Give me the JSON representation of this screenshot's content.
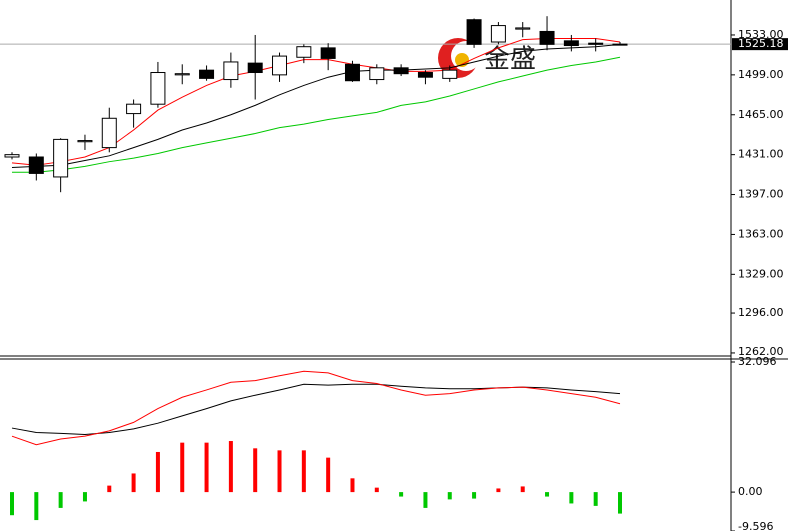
{
  "chart_data": [
    {
      "type": "candlestick",
      "open": [
        1429,
        1429,
        1412,
        1442,
        1437,
        1466,
        1474,
        1499,
        1503,
        1495,
        1509,
        1499,
        1514,
        1522,
        1508,
        1495,
        1505,
        1501,
        1496,
        1546,
        1527,
        1538,
        1536,
        1528,
        1526,
        1525
      ],
      "high": [
        1433,
        1432,
        1445,
        1448,
        1471,
        1478,
        1510,
        1508,
        1507,
        1518,
        1533,
        1518,
        1525,
        1526,
        1511,
        1508,
        1508,
        1503,
        1507,
        1547,
        1544,
        1544,
        1549,
        1533,
        1530,
        1527
      ],
      "low": [
        1427,
        1409,
        1399,
        1435,
        1433,
        1454,
        1471,
        1491,
        1494,
        1488,
        1478,
        1493,
        1509,
        1503,
        1493,
        1491,
        1498,
        1491,
        1493,
        1522,
        1525,
        1531,
        1520,
        1519,
        1519,
        1524
      ],
      "close": [
        1431,
        1415,
        1444,
        1443,
        1462,
        1474,
        1501,
        1500,
        1496,
        1510,
        1501,
        1515,
        1523,
        1513,
        1494,
        1505,
        1500,
        1497,
        1503,
        1525,
        1541,
        1539,
        1525,
        1524,
        1525,
        1525.18
      ],
      "up_color": "#ffffff",
      "down_color": "#000000",
      "lines": [
        {
          "color": "#ff0000",
          "values": [
            1424,
            1422,
            1425,
            1429,
            1437,
            1452,
            1469,
            1480,
            1490,
            1498,
            1502,
            1507,
            1512,
            1512,
            1508,
            1505,
            1502,
            1502,
            1503,
            1513,
            1522,
            1529,
            1530,
            1530,
            1530,
            1527
          ]
        },
        {
          "color": "#000000",
          "values": [
            1420,
            1421,
            1422,
            1426,
            1430,
            1437,
            1444,
            1452,
            1458,
            1465,
            1473,
            1482,
            1490,
            1497,
            1502,
            1503,
            1503,
            1504,
            1505,
            1510,
            1515,
            1519,
            1521,
            1522,
            1523,
            1525
          ]
        },
        {
          "color": "#00c800",
          "values": [
            1416,
            1416,
            1418,
            1421,
            1425,
            1428,
            1432,
            1437,
            1441,
            1445,
            1449,
            1454,
            1457,
            1461,
            1464,
            1467,
            1473,
            1476,
            1481,
            1487,
            1493,
            1498,
            1503,
            1507,
            1510,
            1514
          ]
        }
      ],
      "ylim": [
        1259.4,
        1562.8
      ],
      "yticks": [
        {
          "value": 1533,
          "label": "1533.00"
        },
        {
          "value": 1499,
          "label": "1499.00"
        },
        {
          "value": 1465,
          "label": "1465.00"
        },
        {
          "value": 1431,
          "label": "1431.00"
        },
        {
          "value": 1397,
          "label": "1397.00"
        },
        {
          "value": 1363,
          "label": "1363.00"
        },
        {
          "value": 1329,
          "label": "1329.00"
        },
        {
          "value": 1296,
          "label": "1296.00"
        },
        {
          "value": 1262,
          "label": "1262.00"
        }
      ],
      "last_price": {
        "value": 1525.18,
        "label": "1525.18"
      },
      "watermark": "金盛"
    },
    {
      "type": "macd",
      "histogram": [
        -5.7,
        -6.9,
        -3.9,
        -2.3,
        1.6,
        4.6,
        9.9,
        12.2,
        12.2,
        12.6,
        10.8,
        10.3,
        10.3,
        8.5,
        3.4,
        1.1,
        -1.1,
        -3.9,
        -1.8,
        -1.6,
        0.9,
        1.4,
        -1.1,
        -2.8,
        -3.4,
        -5.3
      ],
      "up_color": "#ff0000",
      "down_color": "#00c800",
      "lines": [
        {
          "color": "#000000",
          "values": [
            15.8,
            14.7,
            14.5,
            14.2,
            14.7,
            15.6,
            17,
            18.8,
            20.6,
            22.5,
            23.9,
            25.2,
            26.6,
            26.4,
            26.6,
            26.6,
            26.1,
            25.7,
            25.5,
            25.5,
            25.7,
            25.9,
            25.7,
            25.2,
            24.8,
            24.3
          ]
        },
        {
          "color": "#ff0000",
          "values": [
            13.8,
            11.7,
            13.1,
            13.8,
            15.1,
            17.2,
            20.6,
            23.4,
            25.2,
            27.1,
            27.5,
            28.7,
            29.8,
            29.4,
            27.5,
            26.8,
            25.2,
            23.9,
            24.3,
            25.2,
            25.7,
            25.9,
            25.2,
            24.3,
            23.4,
            21.8
          ]
        }
      ],
      "ylim": [
        -9.596,
        32.096
      ],
      "yticks": [
        32.096,
        {
          "value": 0,
          "label": "0.00"
        },
        -9.596
      ]
    }
  ]
}
